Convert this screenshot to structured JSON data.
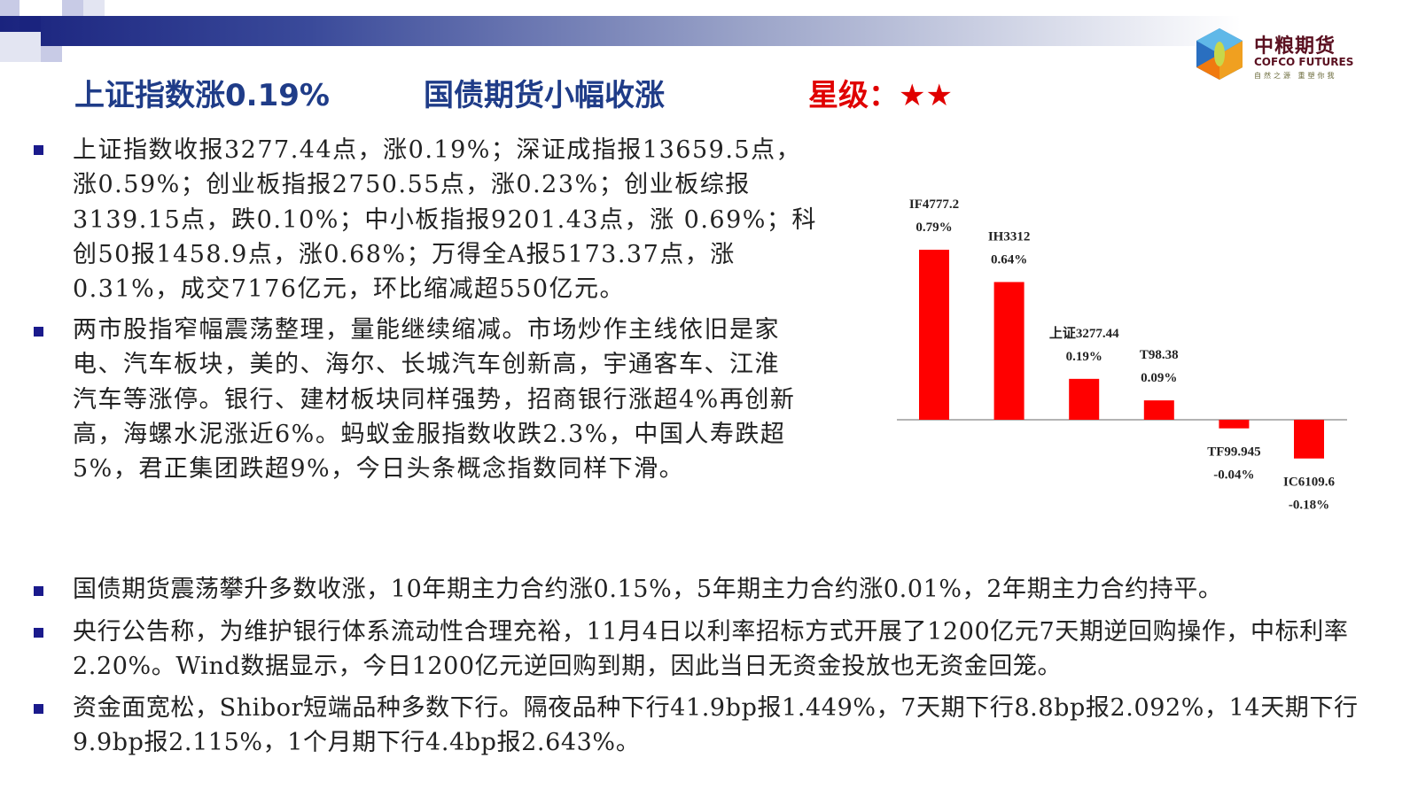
{
  "header": {
    "title_left": "上证指数涨0.19%",
    "title_mid": "国债期货小幅收涨",
    "rating_label": "星级：",
    "rating_stars": 2,
    "rating_text": "★★"
  },
  "logo": {
    "cn": "中粮期货",
    "en": "COFCO FUTURES",
    "slogan": "自然之源 重塑你我"
  },
  "colors": {
    "title": "#1f3c88",
    "rating": "#e00000",
    "bar": "#ff0000",
    "bullet": "#1a1a8c"
  },
  "paragraphs": [
    "上证指数收报3277.44点，涨0.19%；深证成指报13659.5点，涨0.59%；创业板指报2750.55点，涨0.23%；创业板综报3139.15点，跌0.10%；中小板指报9201.43点，涨 0.69%；科创50报1458.9点，涨0.68%；万得全A报5173.37点，涨0.31%，成交7176亿元，环比缩减超550亿元。",
    "两市股指窄幅震荡整理，量能继续缩减。市场炒作主线依旧是家电、汽车板块，美的、海尔、长城汽车创新高，宇通客车、江淮汽车等涨停。银行、建材板块同样强势，招商银行涨超4%再创新高，海螺水泥涨近6%。蚂蚁金服指数收跌2.3%，中国人寿跌超5%，君正集团跌超9%，今日头条概念指数同样下滑。",
    "国债期货震荡攀升多数收涨，10年期主力合约涨0.15%，5年期主力合约涨0.01%，2年期主力合约持平。",
    "央行公告称，为维护银行体系流动性合理充裕，11月4日以利率招标方式开展了1200亿元7天期逆回购操作，中标利率2.20%。Wind数据显示，今日1200亿元逆回购到期，因此当日无资金投放也无资金回笼。",
    "资金面宽松，Shibor短端品种多数下行。隔夜品种下行41.9bp报1.449%，7天期下行8.8bp报2.092%，14天期下行9.9bp报2.115%，1个月期下行4.4bp报2.643%。"
  ],
  "chart_data": {
    "type": "bar",
    "categories": [
      "IF4777.2",
      "IH3312",
      "上证3277.44",
      "T98.38",
      "TF99.945",
      "IC6109.6"
    ],
    "values": [
      0.79,
      0.64,
      0.19,
      0.09,
      -0.04,
      -0.18
    ],
    "value_labels": [
      "0.79%",
      "0.64%",
      "0.19%",
      "0.09%",
      "-0.04%",
      "-0.18%"
    ],
    "unit": "%",
    "grid": false,
    "legend": "none"
  }
}
